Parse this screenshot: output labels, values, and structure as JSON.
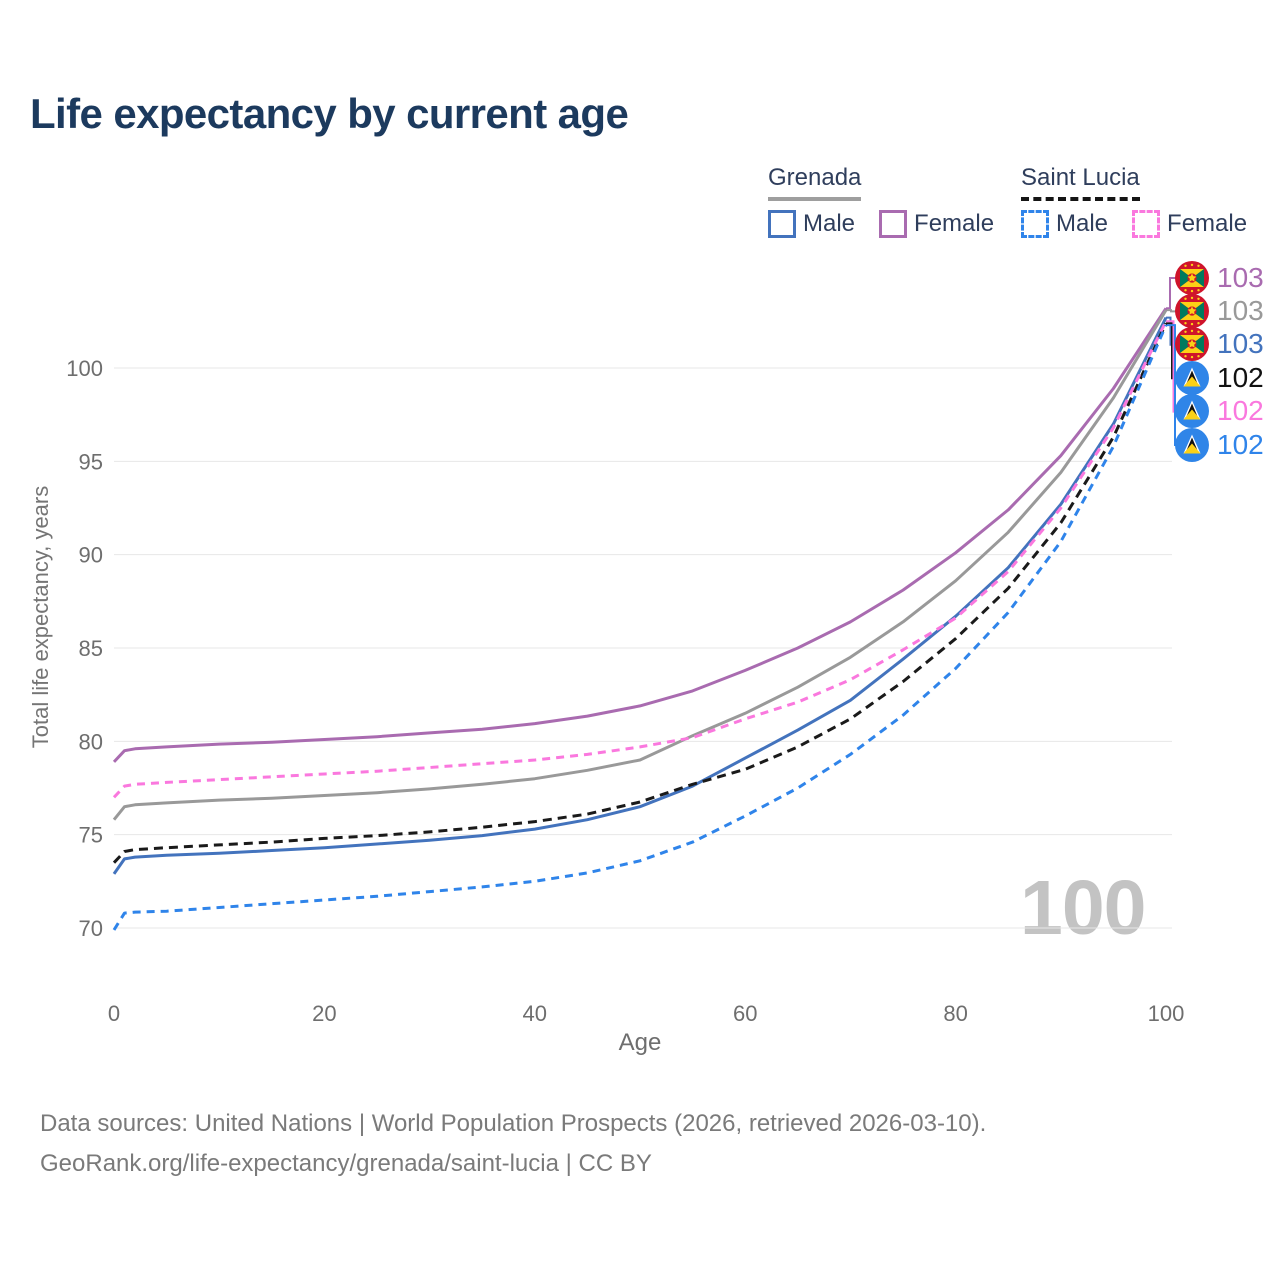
{
  "page": {
    "title": "Life expectancy by current age"
  },
  "legend": {
    "groups": [
      {
        "country": "Grenada",
        "line_style": "solid",
        "underline_color": "#9e9e9e",
        "items": [
          {
            "label": "Male",
            "color": "#4373bd",
            "dashed": false
          },
          {
            "label": "Female",
            "color": "#a96bb0",
            "dashed": false
          }
        ]
      },
      {
        "country": "Saint Lucia",
        "line_style": "dashed",
        "underline_color": "#151515",
        "items": [
          {
            "label": "Male",
            "color": "#2f84ea",
            "dashed": true
          },
          {
            "label": "Female",
            "color": "#fa78de",
            "dashed": true
          }
        ]
      }
    ]
  },
  "chart_data": {
    "type": "line",
    "title": "Life expectancy by current age",
    "xlabel": "Age",
    "ylabel": "Total life expectancy, years",
    "xlim": [
      0,
      100
    ],
    "ylim": [
      70,
      100
    ],
    "xticks": [
      0,
      20,
      40,
      60,
      80,
      100
    ],
    "yticks": [
      70,
      75,
      80,
      85,
      90,
      95,
      100
    ],
    "grid": true,
    "legend_position": "top-right",
    "x": [
      0,
      1,
      2,
      5,
      10,
      15,
      20,
      25,
      30,
      35,
      40,
      45,
      50,
      55,
      60,
      65,
      70,
      75,
      80,
      85,
      90,
      95,
      100
    ],
    "series": [
      {
        "name": "Grenada Female",
        "country": "Grenada",
        "sex": "Female",
        "color": "#a96bb0",
        "dash": null,
        "end_label": "103",
        "values": [
          78.9,
          79.5,
          79.6,
          79.7,
          79.85,
          79.95,
          80.1,
          80.25,
          80.45,
          80.65,
          80.95,
          81.35,
          81.9,
          82.7,
          83.8,
          85.0,
          86.4,
          88.1,
          90.1,
          92.4,
          95.3,
          98.9,
          103.2
        ]
      },
      {
        "name": "Grenada",
        "country": "Grenada",
        "sex": "Both",
        "color": "#999999",
        "dash": null,
        "end_label": "103",
        "values": [
          75.8,
          76.5,
          76.6,
          76.7,
          76.85,
          76.95,
          77.1,
          77.25,
          77.45,
          77.7,
          78.0,
          78.45,
          79.0,
          80.3,
          81.5,
          82.9,
          84.5,
          86.4,
          88.6,
          91.2,
          94.4,
          98.4,
          103.1
        ]
      },
      {
        "name": "Grenada Male",
        "country": "Grenada",
        "sex": "Male",
        "color": "#4373bd",
        "dash": null,
        "end_label": "103",
        "values": [
          72.9,
          73.7,
          73.8,
          73.9,
          74.0,
          74.15,
          74.3,
          74.5,
          74.7,
          74.95,
          75.3,
          75.8,
          76.5,
          77.6,
          79.1,
          80.6,
          82.2,
          84.4,
          86.7,
          89.3,
          92.7,
          97.0,
          102.7
        ]
      },
      {
        "name": "Saint Lucia",
        "country": "Saint Lucia",
        "sex": "Both",
        "color": "#1a1a1a",
        "dash": "9 6",
        "end_label": "102",
        "values": [
          73.5,
          74.1,
          74.2,
          74.3,
          74.45,
          74.6,
          74.8,
          74.95,
          75.15,
          75.4,
          75.7,
          76.1,
          76.75,
          77.7,
          78.5,
          79.7,
          81.2,
          83.2,
          85.5,
          88.2,
          91.7,
          96.3,
          102.4
        ]
      },
      {
        "name": "Saint Lucia Female",
        "country": "Saint Lucia",
        "sex": "Female",
        "color": "#fa78de",
        "dash": "8 6",
        "end_label": "102",
        "values": [
          77.0,
          77.6,
          77.7,
          77.8,
          77.95,
          78.1,
          78.25,
          78.4,
          78.6,
          78.8,
          79.0,
          79.3,
          79.7,
          80.2,
          81.2,
          82.1,
          83.3,
          84.9,
          86.6,
          89.1,
          92.5,
          96.8,
          102.5
        ]
      },
      {
        "name": "Saint Lucia Male",
        "country": "Saint Lucia",
        "sex": "Male",
        "color": "#2f84ea",
        "dash": "8 6",
        "end_label": "102",
        "values": [
          69.9,
          70.8,
          70.85,
          70.9,
          71.1,
          71.3,
          71.5,
          71.7,
          71.95,
          72.2,
          72.5,
          72.95,
          73.6,
          74.6,
          76.0,
          77.5,
          79.3,
          81.4,
          83.9,
          86.9,
          90.7,
          95.8,
          102.3
        ]
      }
    ]
  },
  "end_labels": [
    {
      "flag": "grenada",
      "flag_ref": "#flag-grenada",
      "value": "103",
      "color": "#a96bb0"
    },
    {
      "flag": "grenada",
      "flag_ref": "#flag-grenada",
      "value": "103",
      "color": "#999999"
    },
    {
      "flag": "grenada",
      "flag_ref": "#flag-grenada",
      "value": "103",
      "color": "#4373bd"
    },
    {
      "flag": "saint-lucia",
      "flag_ref": "#flag-saintlucia",
      "value": "102",
      "color": "#111111"
    },
    {
      "flag": "saint-lucia",
      "flag_ref": "#flag-saintlucia",
      "value": "102",
      "color": "#fa78de"
    },
    {
      "flag": "saint-lucia",
      "flag_ref": "#flag-saintlucia",
      "value": "102",
      "color": "#2f84ea"
    }
  ],
  "watermark": "100",
  "footer": {
    "line1": "Data sources: United Nations | World Population Prospects (2026, retrieved 2026-03-10).",
    "line2": "GeoRank.org/life-expectancy/grenada/saint-lucia | CC BY"
  }
}
